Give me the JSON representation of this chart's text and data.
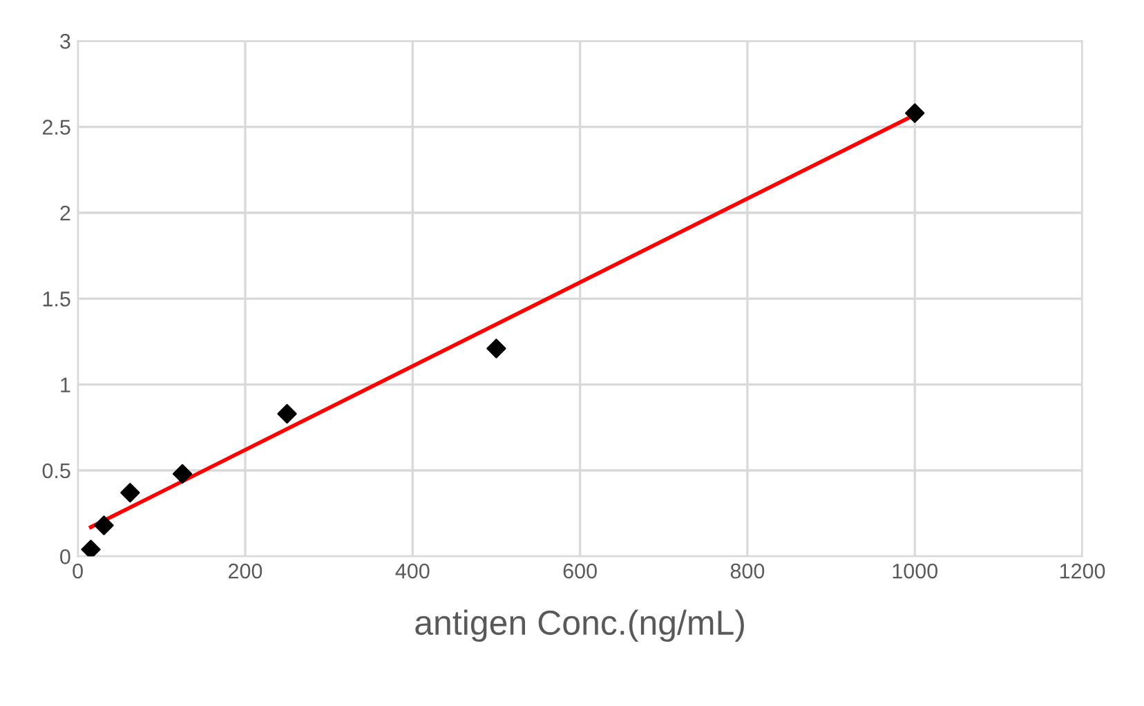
{
  "chart_data": {
    "type": "scatter",
    "xlabel": "antigen Conc.(ng/mL)",
    "series": [
      {
        "color": "#000000",
        "marker": "diamond",
        "x": [
          15.6,
          31.25,
          62.5,
          125,
          250,
          500,
          1000
        ],
        "values": [
          0.04,
          0.18,
          0.37,
          0.48,
          0.83,
          1.21,
          2.58
        ]
      },
      {
        "type": "line",
        "color": "#ff0000",
        "marker": "none",
        "line_style": "solid",
        "x": [
          15.6,
          1000
        ],
        "values": [
          0.17,
          2.57
        ]
      }
    ],
    "xlim": [
      0,
      1200
    ],
    "xticks": [
      0,
      200,
      400,
      600,
      800,
      1000,
      1200
    ],
    "ylim": [
      0,
      3
    ],
    "yticks": [
      0,
      0.5,
      1,
      1.5,
      2,
      2.5,
      3
    ],
    "grid": true,
    "legend": false
  }
}
